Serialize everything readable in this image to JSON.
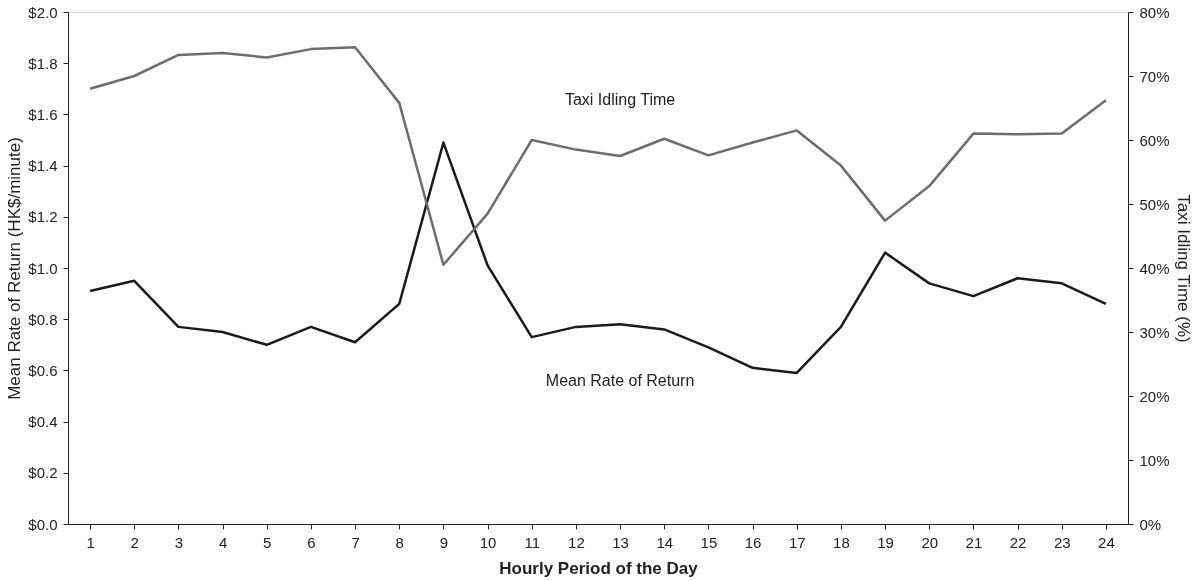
{
  "chart_data": {
    "type": "line",
    "xlabel": "Hourly Period of the Day",
    "ylabel": "Mean Rate of Return (HK$/minute)",
    "y2label": "Taxi Idling Time (%)",
    "x": [
      1,
      2,
      3,
      4,
      5,
      6,
      7,
      8,
      9,
      10,
      11,
      12,
      13,
      14,
      15,
      16,
      17,
      18,
      19,
      20,
      21,
      22,
      23,
      24
    ],
    "xlim": [
      0.5,
      24.5
    ],
    "xticks": [
      1,
      2,
      3,
      4,
      5,
      6,
      7,
      8,
      9,
      10,
      11,
      12,
      13,
      14,
      15,
      16,
      17,
      18,
      19,
      20,
      21,
      22,
      23,
      24
    ],
    "ylim": [
      0,
      2
    ],
    "yticks": [
      {
        "value": 0,
        "label": "$0.0"
      },
      {
        "value": 0.2,
        "label": "$0.2"
      },
      {
        "value": 0.4,
        "label": "$0.4"
      },
      {
        "value": 0.6,
        "label": "$0.6"
      },
      {
        "value": 0.8,
        "label": "$0.8"
      },
      {
        "value": 1.0,
        "label": "$1.0"
      },
      {
        "value": 1.2,
        "label": "$1.2"
      },
      {
        "value": 1.4,
        "label": "$1.4"
      },
      {
        "value": 1.6,
        "label": "$1.6"
      },
      {
        "value": 1.8,
        "label": "$1.8"
      },
      {
        "value": 2.0,
        "label": "$2.0"
      }
    ],
    "y2lim": [
      0,
      80
    ],
    "y2ticks": [
      {
        "value": 0,
        "label": "0%"
      },
      {
        "value": 10,
        "label": "10%"
      },
      {
        "value": 20,
        "label": "20%"
      },
      {
        "value": 30,
        "label": "30%"
      },
      {
        "value": 40,
        "label": "40%"
      },
      {
        "value": 50,
        "label": "50%"
      },
      {
        "value": 60,
        "label": "60%"
      },
      {
        "value": 70,
        "label": "70%"
      },
      {
        "value": 80,
        "label": "80%"
      }
    ],
    "grid": false,
    "marker": "none",
    "line_style": "solid",
    "series": [
      {
        "name": "Mean Rate of Return",
        "color": "#1a1a1a",
        "values": [
          0.91,
          0.95,
          0.77,
          0.75,
          0.7,
          0.77,
          0.71,
          0.86,
          1.49,
          1.01,
          0.73,
          0.77,
          0.78,
          0.76,
          0.69,
          0.61,
          0.59,
          0.77,
          1.06,
          0.94,
          0.89,
          0.96,
          0.94,
          0.86
        ]
      },
      {
        "name": "Taxi Idling Time",
        "color": "#6d6d6d",
        "axis": "y2",
        "values": [
          68,
          70,
          73.3,
          73.6,
          72.9,
          74.2,
          74.5,
          65.8,
          40.5,
          48.5,
          60,
          58.5,
          57.5,
          60.2,
          57.6,
          59.6,
          61.5,
          56,
          47.4,
          52.8,
          61,
          60.9,
          61,
          66.2
        ]
      }
    ]
  }
}
